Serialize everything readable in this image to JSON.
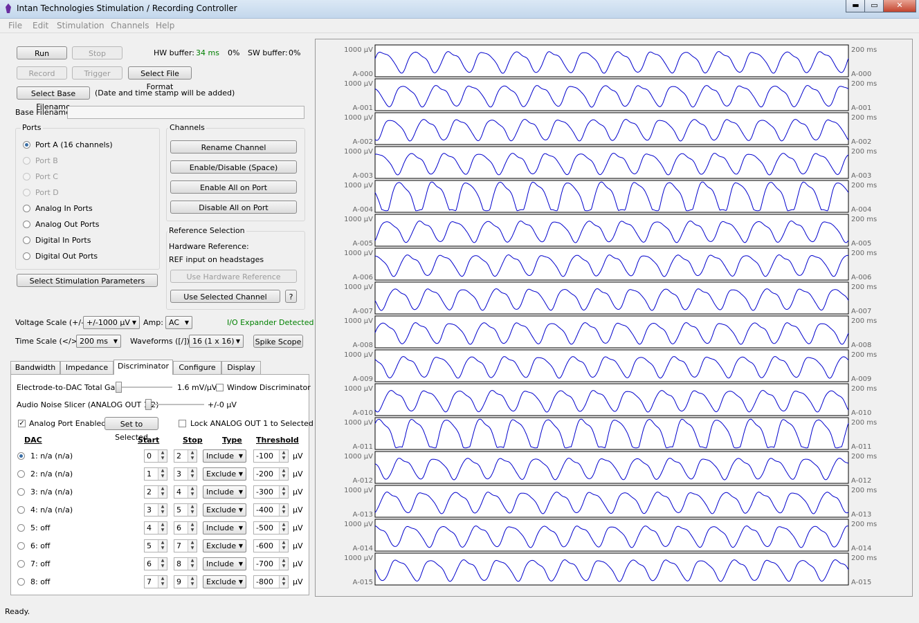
{
  "window": {
    "title": "Intan Technologies Stimulation / Recording Controller",
    "min": "▬",
    "max": "▭",
    "close": "✕"
  },
  "menu": [
    "File",
    "Edit",
    "Stimulation",
    "Channels",
    "Help"
  ],
  "controls": {
    "run": "Run",
    "stop": "Stop",
    "record": "Record",
    "trigger": "Trigger",
    "select_file_format": "Select File Format",
    "select_base_filename": "Select Base Filename",
    "filename_note": "(Date and time stamp will be added)",
    "base_filename_label": "Base Filename",
    "base_filename_value": ""
  },
  "buffers": {
    "hw_label": "HW buffer:",
    "hw_time": "34 ms",
    "hw_pct": "0%",
    "sw_label": "SW buffer:",
    "sw_pct": "0%"
  },
  "ports": {
    "title": "Ports",
    "items": [
      {
        "label": "Port A (16 channels)",
        "selected": true,
        "enabled": true
      },
      {
        "label": "Port B",
        "selected": false,
        "enabled": false
      },
      {
        "label": "Port C",
        "selected": false,
        "enabled": false
      },
      {
        "label": "Port D",
        "selected": false,
        "enabled": false
      },
      {
        "label": "Analog In Ports",
        "selected": false,
        "enabled": true
      },
      {
        "label": "Analog Out Ports",
        "selected": false,
        "enabled": true
      },
      {
        "label": "Digital In Ports",
        "selected": false,
        "enabled": true
      },
      {
        "label": "Digital Out Ports",
        "selected": false,
        "enabled": true
      }
    ]
  },
  "channels": {
    "title": "Channels",
    "rename": "Rename Channel",
    "enable_disable": "Enable/Disable (Space)",
    "enable_all": "Enable All on Port",
    "disable_all": "Disable All on Port"
  },
  "reference": {
    "title": "Reference Selection",
    "hw_ref_label": "Hardware Reference:",
    "hw_ref_value": "REF input on headstages",
    "use_hw": "Use Hardware Reference",
    "use_selected": "Use Selected Channel",
    "help": "?"
  },
  "select_stim_params": "Select Stimulation Parameters",
  "scales": {
    "voltage_label": "Voltage Scale (+/-)",
    "voltage_value": "+/-1000 μV",
    "amp_label": "Amp:",
    "amp_value": "AC",
    "io_expander": "I/O Expander Detected",
    "time_label": "Time Scale (</>)",
    "time_value": "200 ms",
    "waveforms_label": "Waveforms ([/])",
    "waveforms_value": "16 (1 x 16)",
    "spike_scope": "Spike Scope"
  },
  "tabs": [
    "Bandwidth",
    "Impedance",
    "Discriminator",
    "Configure",
    "Display"
  ],
  "discriminator": {
    "gain_label": "Electrode-to-DAC Total Gain",
    "gain_value": "1.6 mV/μV",
    "window_disc": "Window Discriminator",
    "noise_label": "Audio Noise Slicer (ANALOG OUT 1,2)",
    "noise_value": "+/-0 μV",
    "analog_port_enabled": "Analog Port Enabled",
    "set_to_selected": "Set to Selected",
    "lock_analog": "Lock ANALOG OUT 1 to Selected",
    "headers": {
      "dac": "DAC",
      "start": "Start",
      "stop": "Stop",
      "type": "Type",
      "threshold": "Threshold"
    },
    "unit": "μV",
    "rows": [
      {
        "dac": "1: n/a (n/a)",
        "start": "0",
        "stop": "2",
        "type": "Include",
        "threshold": "-100",
        "selected": true
      },
      {
        "dac": "2: n/a (n/a)",
        "start": "1",
        "stop": "3",
        "type": "Exclude",
        "threshold": "-200",
        "selected": false
      },
      {
        "dac": "3: n/a (n/a)",
        "start": "2",
        "stop": "4",
        "type": "Include",
        "threshold": "-300",
        "selected": false
      },
      {
        "dac": "4: n/a (n/a)",
        "start": "3",
        "stop": "5",
        "type": "Exclude",
        "threshold": "-400",
        "selected": false
      },
      {
        "dac": "5: off",
        "start": "4",
        "stop": "6",
        "type": "Include",
        "threshold": "-500",
        "selected": false
      },
      {
        "dac": "6: off",
        "start": "5",
        "stop": "7",
        "type": "Exclude",
        "threshold": "-600",
        "selected": false
      },
      {
        "dac": "7: off",
        "start": "6",
        "stop": "8",
        "type": "Include",
        "threshold": "-700",
        "selected": false
      },
      {
        "dac": "8: off",
        "start": "7",
        "stop": "9",
        "type": "Exclude",
        "threshold": "-800",
        "selected": false
      }
    ]
  },
  "plots": {
    "voltage_label": "1000 μV",
    "time_label": "200 ms",
    "color": "#0000cc",
    "channels": [
      "A-000",
      "A-001",
      "A-002",
      "A-003",
      "A-004",
      "A-005",
      "A-006",
      "A-007",
      "A-008",
      "A-009",
      "A-010",
      "A-011",
      "A-012",
      "A-013",
      "A-014",
      "A-015"
    ],
    "cycles": 14
  },
  "status": "Ready.",
  "colors": {
    "accent_green": "#008000",
    "trace_blue": "#0000cc"
  }
}
